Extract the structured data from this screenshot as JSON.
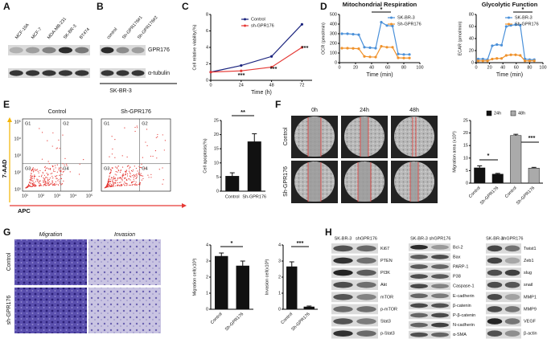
{
  "panels": {
    "A": {
      "label": "A",
      "lanes": [
        "MCF-10A",
        "MCF-7",
        "MDA-MB-231",
        "SK-BR-3",
        "BT474"
      ]
    },
    "B": {
      "label": "B",
      "lanes": [
        "control",
        "Sh-GPR176#1",
        "Sh-GPR176#2"
      ],
      "rows": [
        "GPR176",
        "α-tubulin"
      ],
      "cell_line": "SK-BR-3"
    },
    "C": {
      "label": "C"
    },
    "D": {
      "label": "D"
    },
    "E": {
      "label": "E",
      "plots": [
        "Control",
        "Sh-GPR176"
      ],
      "gates": [
        "G1",
        "G2",
        "G3",
        "G4"
      ],
      "y_axis": "7-AAD",
      "x_axis": "APC",
      "ticks": [
        "10¹",
        "10²",
        "10³",
        "10⁴",
        "10⁵"
      ]
    },
    "F": {
      "label": "F",
      "times": [
        "0h",
        "24h",
        "48h"
      ],
      "rows": [
        "Control",
        "Sh-GPR176"
      ]
    },
    "G": {
      "label": "G",
      "columns": [
        "Migration",
        "Invasion"
      ],
      "rows": [
        "Control",
        "sh-GPR176"
      ]
    },
    "H": {
      "label": "H",
      "groups": [
        {
          "lanes": [
            "SK-BR-3",
            "shGPR176"
          ],
          "proteins": [
            "Ki67",
            "PTEN",
            "PI3K",
            "Akt",
            "mTOR",
            "p-mTOR",
            "Stat3",
            "p-Stat3"
          ]
        },
        {
          "lanes": [
            "SK-BR-3",
            "shGPR176"
          ],
          "proteins": [
            "Bcl-2",
            "Bax",
            "PARP-1",
            "P38",
            "Caspase-1",
            "E-cadherin",
            "β-catenin",
            "P-β-catenin",
            "N-cadherin",
            "α-SMA"
          ]
        },
        {
          "lanes": [
            "SK-BR-3",
            "shGPR176"
          ],
          "proteins": [
            "Twist1",
            "Zeb1",
            "slug",
            "snail",
            "MMP1",
            "MMP9",
            "VEGF",
            "β-actin"
          ]
        }
      ]
    }
  },
  "chart_data": [
    {
      "type": "line",
      "x_label": "Time (h)",
      "y_label": "Cell relative viability(%)",
      "x": [
        0,
        24,
        48,
        72
      ],
      "xlim": [
        0,
        80
      ],
      "xticks": [
        0,
        24,
        48,
        72
      ],
      "ylim": [
        0,
        8
      ],
      "yticks": [
        0,
        2,
        4,
        6,
        8
      ],
      "series": [
        {
          "name": "Control",
          "color": "#1a237e",
          "values": [
            1,
            1.8,
            2.9,
            6.8
          ]
        },
        {
          "name": "sh-GPR176",
          "color": "#e53935",
          "values": [
            1,
            1.15,
            1.6,
            4.0
          ]
        }
      ],
      "annotations": [
        "***",
        "***",
        "***"
      ]
    },
    {
      "type": "line",
      "title": "Mitochondrial Respiration",
      "x_label": "Time (min)",
      "y_label": "OCR (pmol/min)",
      "x": [
        3,
        10,
        17,
        24,
        31,
        38,
        45,
        52,
        59,
        66,
        73,
        80,
        87
      ],
      "xlim": [
        0,
        100
      ],
      "xticks": [
        0,
        20,
        40,
        60,
        80,
        100
      ],
      "ylim": [
        0,
        500
      ],
      "yticks": [
        0,
        100,
        200,
        300,
        400,
        500
      ],
      "series": [
        {
          "name": "SK-BR-3",
          "color": "#4a90d9",
          "values": [
            300,
            300,
            295,
            290,
            160,
            155,
            150,
            420,
            385,
            380,
            90,
            85,
            85
          ]
        },
        {
          "name": "Sh-GPR176",
          "color": "#f0922b",
          "values": [
            150,
            150,
            148,
            145,
            65,
            60,
            58,
            170,
            160,
            160,
            50,
            48,
            48
          ]
        }
      ],
      "annotations": [
        "*"
      ]
    },
    {
      "type": "line",
      "title": "Glycolytic Function",
      "x_label": "Time (min)",
      "y_label": "ECAR (pmol/min)",
      "x": [
        3,
        10,
        17,
        24,
        31,
        38,
        45,
        52,
        59,
        66,
        73,
        80,
        87
      ],
      "xlim": [
        0,
        100
      ],
      "xticks": [
        0,
        20,
        40,
        60,
        80,
        100
      ],
      "ylim": [
        0,
        80
      ],
      "yticks": [
        0,
        20,
        40,
        60,
        80
      ],
      "series": [
        {
          "name": "SK-BR-3",
          "color": "#4a90d9",
          "values": [
            6,
            6,
            5,
            28,
            30,
            29,
            60,
            62,
            63,
            62,
            6,
            5,
            5
          ]
        },
        {
          "name": "Sh-GPR176",
          "color": "#f0922b",
          "values": [
            3,
            3,
            3,
            6,
            7,
            7,
            12,
            13,
            13,
            12,
            3,
            3,
            3
          ]
        }
      ],
      "annotations": [
        "*"
      ]
    },
    {
      "type": "bar",
      "y_label": "Cell apoptosis(%)",
      "categories": [
        "Control",
        "Sh-GPR176"
      ],
      "ylim": [
        0,
        25
      ],
      "yticks": [
        0,
        5,
        10,
        15,
        20,
        25
      ],
      "series": [
        {
          "color": "#111111",
          "values": [
            5.3,
            17.5
          ],
          "errors": [
            1.2,
            2.8
          ]
        }
      ],
      "annotations": [
        "**"
      ]
    },
    {
      "type": "bar",
      "y_label": "Migration area (x10⁵)",
      "categories": [
        "Control",
        "Sh-GPR176"
      ],
      "ylim": [
        0,
        25
      ],
      "yticks": [
        0,
        5,
        10,
        15,
        20,
        25
      ],
      "series": [
        {
          "name": "24h",
          "color": "#111111",
          "values": [
            6.1,
            3.6
          ],
          "errors": [
            0.8,
            0.3
          ]
        },
        {
          "name": "48h",
          "color": "#aaaaaa",
          "values": [
            19,
            6
          ],
          "errors": [
            0.5,
            0.3
          ]
        }
      ],
      "annotations": [
        "*",
        "***"
      ]
    },
    {
      "type": "bar",
      "y_label": "Migration cell(x10³)",
      "categories": [
        "Control",
        "Sh-GPR176"
      ],
      "ylim": [
        0,
        4
      ],
      "yticks": [
        0,
        1,
        2,
        3,
        4
      ],
      "series": [
        {
          "color": "#111111",
          "values": [
            3.3,
            2.7
          ],
          "errors": [
            0.2,
            0.3
          ]
        }
      ],
      "annotations": [
        "*"
      ]
    },
    {
      "type": "bar",
      "y_label": "Invasion cell(x10³)",
      "categories": [
        "Control",
        "Sh-GPR176"
      ],
      "ylim": [
        0,
        4
      ],
      "yticks": [
        0,
        1,
        2,
        3,
        4
      ],
      "series": [
        {
          "color": "#111111",
          "values": [
            2.65,
            0.15
          ],
          "errors": [
            0.3,
            0.05
          ]
        }
      ],
      "annotations": [
        "***"
      ]
    }
  ]
}
